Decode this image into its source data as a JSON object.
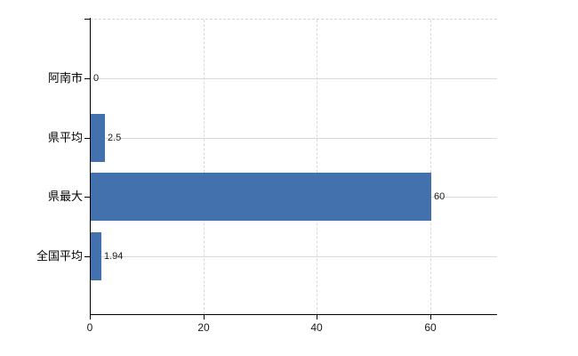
{
  "chart": {
    "background_color": "#ffffff",
    "bar_color": "#4271ae",
    "axis_color": "#000000",
    "hgrid_color": "#d6ddd6",
    "vgrid_color": "#d9d9d9",
    "top_border_color": "#d4d4d4",
    "text_color": "#000000"
  },
  "chart_data": {
    "type": "bar",
    "orientation": "horizontal",
    "title": "",
    "xlabel": "",
    "ylabel": "",
    "categories": [
      "阿南市",
      "県平均",
      "県最大",
      "全国平均"
    ],
    "values": [
      0,
      2.5,
      60,
      1.94
    ],
    "value_labels": [
      "0",
      "2.5",
      "60",
      "1.94"
    ],
    "x_ticks": [
      0,
      20,
      40,
      60
    ],
    "x_tick_labels": [
      "0",
      "20",
      "40",
      "60"
    ],
    "xlim": [
      0,
      71.7
    ],
    "grid": true,
    "legend": false
  }
}
